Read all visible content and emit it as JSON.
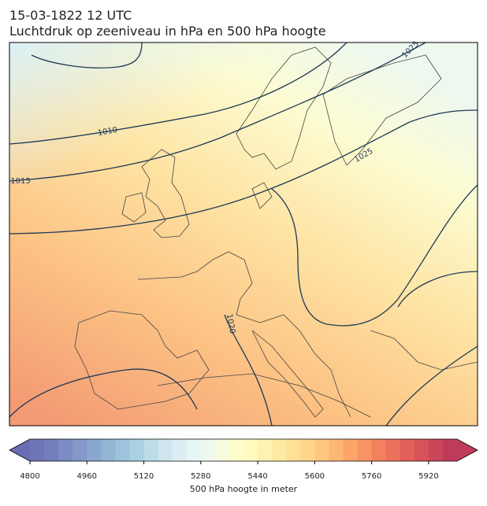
{
  "header": {
    "title_line1": "15-03-1822 12 UTC",
    "title_line2": "Luchtdruk op zeeniveau in hPa en 500 hPa hoogte"
  },
  "map": {
    "contour_labels": [
      "1010",
      "1015",
      "1025",
      "1025",
      "1020"
    ]
  },
  "colorbar": {
    "label": "500 hPa hoogte in meter",
    "lim": [
      4800,
      6000
    ],
    "ticks": [
      4800,
      4960,
      5120,
      5280,
      5440,
      5600,
      5760,
      5920
    ],
    "under_color": "#6a6db4",
    "over_color": "#bf3b5b",
    "colors": [
      "#6f73b8",
      "#737fbd",
      "#7a8cc3",
      "#8299c9",
      "#8aa7cf",
      "#93b5d6",
      "#9ec3dc",
      "#abd0e3",
      "#bcdcea",
      "#cde6ef",
      "#dcedf3",
      "#e6f4f4",
      "#eff8ec",
      "#f7fbdd",
      "#fdfdcc",
      "#fffac0",
      "#fff2b0",
      "#feeaa2",
      "#fee097",
      "#fed58b",
      "#fdc77f",
      "#fcb773",
      "#fba56a",
      "#f79463",
      "#f2825e",
      "#ec705b",
      "#e35f5a",
      "#d8525a",
      "#cb465b",
      "#bf3b5b"
    ]
  }
}
